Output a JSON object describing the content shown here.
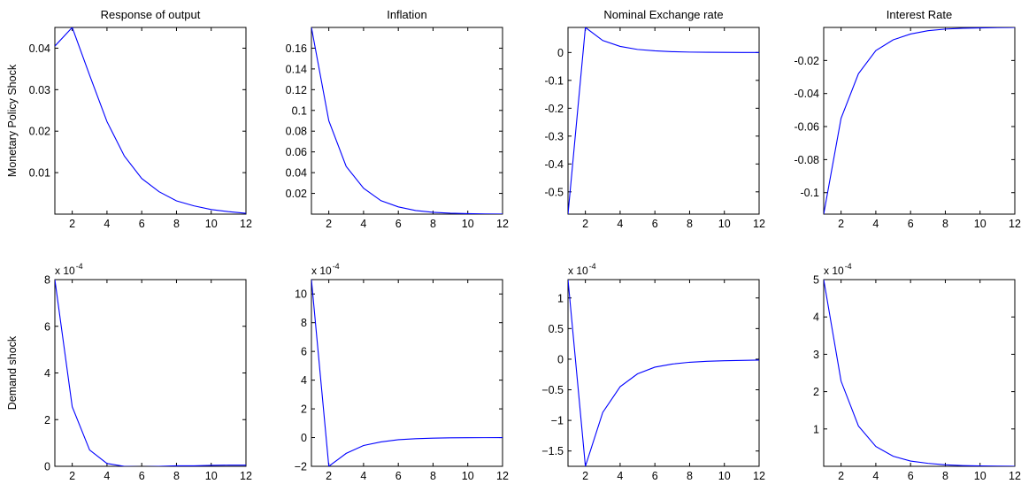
{
  "chart_data": [
    {
      "type": "line",
      "title": "Response of output",
      "ylabel": "Monetary Policy Shock",
      "color": "#0000ff",
      "exponent": null,
      "xlim": [
        1,
        12
      ],
      "xticks": [
        2,
        4,
        6,
        8,
        10,
        12
      ],
      "ylim": [
        0,
        0.045
      ],
      "yticks": [
        0.01,
        0.02,
        0.03,
        0.04
      ],
      "ytick_labels": [
        "0.01",
        "0.02",
        "0.03",
        "0.04"
      ],
      "x": [
        1,
        2,
        3,
        4,
        5,
        6,
        7,
        8,
        9,
        10,
        11,
        12
      ],
      "y": [
        0.0405,
        0.045,
        0.0335,
        0.0223,
        0.014,
        0.0086,
        0.0054,
        0.0032,
        0.002,
        0.0011,
        0.0006,
        0.0002
      ]
    },
    {
      "type": "line",
      "title": "Inflation",
      "ylabel": "",
      "color": "#0000ff",
      "exponent": null,
      "xlim": [
        1,
        12
      ],
      "xticks": [
        2,
        4,
        6,
        8,
        10,
        12
      ],
      "ylim": [
        0,
        0.18
      ],
      "yticks": [
        0.02,
        0.04,
        0.06,
        0.08,
        0.1,
        0.12,
        0.14,
        0.16
      ],
      "ytick_labels": [
        "0.02",
        "0.04",
        "0.06",
        "0.08",
        "0.1",
        "0.12",
        "0.14",
        "0.16"
      ],
      "x": [
        1,
        2,
        3,
        4,
        5,
        6,
        7,
        8,
        9,
        10,
        11,
        12
      ],
      "y": [
        0.18,
        0.09,
        0.046,
        0.025,
        0.013,
        0.007,
        0.0035,
        0.0018,
        0.0009,
        0.0005,
        0.0002,
        0.0001
      ]
    },
    {
      "type": "line",
      "title": "Nominal Exchange rate",
      "ylabel": "",
      "color": "#0000ff",
      "exponent": null,
      "xlim": [
        1,
        12
      ],
      "xticks": [
        2,
        4,
        6,
        8,
        10,
        12
      ],
      "ylim": [
        -0.58,
        0.09
      ],
      "yticks": [
        -0.5,
        -0.4,
        -0.3,
        -0.2,
        -0.1,
        0
      ],
      "ytick_labels": [
        "-0.5",
        "-0.4",
        "-0.3",
        "-0.2",
        "-0.1",
        "0"
      ],
      "x": [
        1,
        2,
        3,
        4,
        5,
        6,
        7,
        8,
        9,
        10,
        11,
        12
      ],
      "y": [
        -0.58,
        0.09,
        0.043,
        0.022,
        0.011,
        0.006,
        0.003,
        0.0015,
        0.0008,
        0.0004,
        0.0002,
        0.0001
      ]
    },
    {
      "type": "line",
      "title": "Interest Rate",
      "ylabel": "",
      "color": "#0000ff",
      "exponent": null,
      "xlim": [
        1,
        12
      ],
      "xticks": [
        2,
        4,
        6,
        8,
        10,
        12
      ],
      "ylim": [
        -0.113,
        0
      ],
      "yticks": [
        -0.1,
        -0.08,
        -0.06,
        -0.04,
        -0.02
      ],
      "ytick_labels": [
        "-0.1",
        "-0.08",
        "-0.06",
        "-0.04",
        "-0.02"
      ],
      "x": [
        1,
        2,
        3,
        4,
        5,
        6,
        7,
        8,
        9,
        10,
        11,
        12
      ],
      "y": [
        -0.113,
        -0.055,
        -0.028,
        -0.014,
        -0.0075,
        -0.004,
        -0.002,
        -0.001,
        -0.0005,
        -0.0003,
        -0.0001,
        0
      ]
    },
    {
      "type": "line",
      "title": "",
      "ylabel": "Demand shock",
      "color": "#0000ff",
      "exponent": {
        "base": "x 10",
        "power": "-4"
      },
      "xlim": [
        1,
        12
      ],
      "xticks": [
        2,
        4,
        6,
        8,
        10,
        12
      ],
      "ylim": [
        0,
        8
      ],
      "yticks": [
        0,
        2,
        4,
        6,
        8
      ],
      "ytick_labels": [
        "0",
        "2",
        "4",
        "6",
        "8"
      ],
      "x": [
        1,
        2,
        3,
        4,
        5,
        6,
        7,
        8,
        9,
        10,
        11,
        12
      ],
      "y": [
        8.0,
        2.55,
        0.7,
        0.12,
        0.0,
        -0.02,
        0.0,
        0.02,
        0.02,
        0.04,
        0.05,
        0.05
      ]
    },
    {
      "type": "line",
      "title": "",
      "ylabel": "",
      "color": "#0000ff",
      "exponent": {
        "base": "x 10",
        "power": "-4"
      },
      "xlim": [
        1,
        12
      ],
      "xticks": [
        2,
        4,
        6,
        8,
        10,
        12
      ],
      "ylim": [
        -2,
        11
      ],
      "yticks": [
        -2,
        0,
        2,
        4,
        6,
        8,
        10
      ],
      "ytick_labels": [
        "−2",
        "0",
        "2",
        "4",
        "6",
        "8",
        "10"
      ],
      "x": [
        1,
        2,
        3,
        4,
        5,
        6,
        7,
        8,
        9,
        10,
        11,
        12
      ],
      "y": [
        11.0,
        -2.0,
        -1.1,
        -0.55,
        -0.3,
        -0.15,
        -0.08,
        -0.04,
        -0.02,
        -0.01,
        -0.005,
        0.0
      ]
    },
    {
      "type": "line",
      "title": "",
      "ylabel": "",
      "color": "#0000ff",
      "exponent": {
        "base": "x 10",
        "power": "-4"
      },
      "xlim": [
        1,
        12
      ],
      "xticks": [
        2,
        4,
        6,
        8,
        10,
        12
      ],
      "ylim": [
        -1.75,
        1.3
      ],
      "yticks": [
        -1.5,
        -1,
        -0.5,
        0,
        0.5,
        1
      ],
      "ytick_labels": [
        "−1.5",
        "−1",
        "−0.5",
        "0",
        "0.5",
        "1"
      ],
      "x": [
        1,
        2,
        3,
        4,
        5,
        6,
        7,
        8,
        9,
        10,
        11,
        12
      ],
      "y": [
        1.3,
        -1.75,
        -0.87,
        -0.45,
        -0.24,
        -0.13,
        -0.08,
        -0.05,
        -0.035,
        -0.025,
        -0.02,
        -0.015
      ]
    },
    {
      "type": "line",
      "title": "",
      "ylabel": "",
      "color": "#0000ff",
      "exponent": {
        "base": "x 10",
        "power": "-4"
      },
      "xlim": [
        1,
        12
      ],
      "xticks": [
        2,
        4,
        6,
        8,
        10,
        12
      ],
      "ylim": [
        0,
        5
      ],
      "yticks": [
        1,
        2,
        3,
        4,
        5
      ],
      "ytick_labels": [
        "1",
        "2",
        "3",
        "4",
        "5"
      ],
      "x": [
        1,
        2,
        3,
        4,
        5,
        6,
        7,
        8,
        9,
        10,
        11,
        12
      ],
      "y": [
        5.0,
        2.28,
        1.08,
        0.53,
        0.27,
        0.14,
        0.08,
        0.04,
        0.02,
        0.01,
        0.005,
        0.0
      ]
    }
  ]
}
